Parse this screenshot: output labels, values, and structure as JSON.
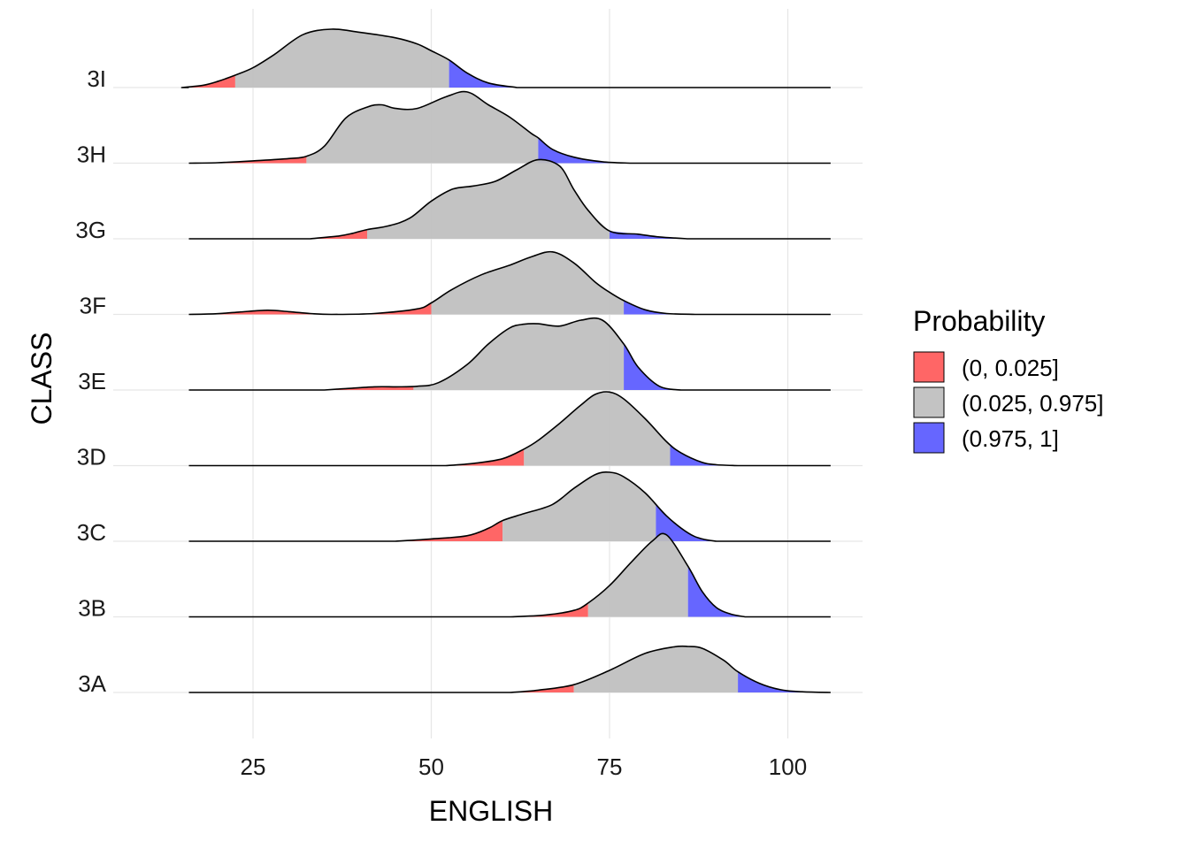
{
  "chart_data": {
    "type": "area",
    "xlabel": "ENGLISH",
    "ylabel": "CLASS",
    "xlim": [
      10,
      108
    ],
    "x_ticks": [
      25,
      50,
      75,
      100
    ],
    "x_tick_labels": [
      "25",
      "50",
      "75",
      "100"
    ],
    "grid": true,
    "legend_placement": "right",
    "legend": {
      "title": "Probability",
      "entries": [
        {
          "label": "(0, 0.025]",
          "color": "#FF5A5A"
        },
        {
          "label": "(0.025, 0.975]",
          "color": "#BEBEBE"
        },
        {
          "label": "(0.975, 1]",
          "color": "#5A5AFF"
        }
      ]
    },
    "line_range": [
      16,
      106
    ],
    "categories": [
      "3A",
      "3B",
      "3C",
      "3D",
      "3E",
      "3F",
      "3G",
      "3H",
      "3I"
    ],
    "series": [
      {
        "name": "3A",
        "q025": 70,
        "q975": 93,
        "x": [
          61,
          65,
          70,
          75,
          80,
          84,
          86,
          88,
          91,
          93,
          96,
          99,
          102,
          106
        ],
        "y": [
          0,
          0.05,
          0.17,
          0.48,
          0.85,
          0.99,
          1.0,
          0.96,
          0.7,
          0.45,
          0.2,
          0.06,
          0.015,
          0
        ]
      },
      {
        "name": "3B",
        "q025": 72,
        "q975": 86,
        "x": [
          61,
          66,
          70,
          72,
          75,
          78,
          81,
          83,
          86,
          88,
          90,
          92,
          94
        ],
        "y": [
          0,
          0.04,
          0.14,
          0.3,
          0.68,
          1.18,
          1.65,
          1.78,
          1.1,
          0.55,
          0.2,
          0.06,
          0
        ]
      },
      {
        "name": "3C",
        "q025": 60,
        "q975": 81.5,
        "x": [
          45,
          50,
          55,
          58,
          60,
          63,
          67,
          70,
          73,
          75,
          77,
          80,
          83,
          86,
          88,
          90
        ],
        "y": [
          0,
          0.05,
          0.12,
          0.28,
          0.45,
          0.6,
          0.8,
          1.15,
          1.45,
          1.5,
          1.4,
          1.05,
          0.55,
          0.18,
          0.05,
          0
        ]
      },
      {
        "name": "3D",
        "q025": 63,
        "q975": 83.5,
        "x": [
          52,
          56,
          60,
          63,
          65,
          68,
          71,
          73,
          75,
          77,
          80,
          83,
          85,
          88,
          90,
          93
        ],
        "y": [
          0,
          0.05,
          0.15,
          0.36,
          0.55,
          0.92,
          1.32,
          1.55,
          1.6,
          1.45,
          1.02,
          0.52,
          0.28,
          0.07,
          0.02,
          0
        ]
      },
      {
        "name": "3E",
        "q025": 47.5,
        "q975": 77,
        "x": [
          35,
          38,
          42,
          45,
          48,
          51,
          55,
          58,
          61,
          63,
          65,
          68,
          71,
          74,
          77,
          79,
          82,
          85
        ],
        "y": [
          0,
          0.03,
          0.07,
          0.07,
          0.08,
          0.16,
          0.55,
          1.0,
          1.35,
          1.43,
          1.44,
          1.39,
          1.52,
          1.52,
          1.0,
          0.5,
          0.08,
          0
        ]
      },
      {
        "name": "3F",
        "q025": 50,
        "q975": 77,
        "x": [
          16,
          20,
          23,
          27,
          30,
          33,
          36,
          42,
          48,
          50,
          53,
          57,
          61,
          64,
          67,
          70,
          73,
          75,
          77,
          80,
          83,
          87
        ],
        "y": [
          0,
          0.015,
          0.05,
          0.09,
          0.06,
          0.02,
          0,
          0.02,
          0.12,
          0.25,
          0.55,
          0.86,
          1.07,
          1.25,
          1.36,
          1.12,
          0.7,
          0.48,
          0.3,
          0.1,
          0.02,
          0
        ]
      },
      {
        "name": "3G",
        "q025": 41,
        "q975": 75,
        "x": [
          33,
          37,
          39,
          41,
          44,
          47,
          50,
          53,
          56,
          59,
          62,
          65,
          68,
          70,
          72,
          75,
          79,
          82,
          86
        ],
        "y": [
          0,
          0.06,
          0.12,
          0.2,
          0.28,
          0.45,
          0.82,
          1.08,
          1.15,
          1.25,
          1.5,
          1.72,
          1.58,
          1.07,
          0.62,
          0.17,
          0.1,
          0.04,
          0
        ]
      },
      {
        "name": "3H",
        "q025": 32.5,
        "q975": 65,
        "x": [
          16,
          20,
          25,
          30,
          32.5,
          35,
          38,
          41,
          43,
          45,
          48,
          52,
          55,
          58,
          61,
          64,
          65,
          67,
          70,
          74,
          78
        ],
        "y": [
          0,
          0.01,
          0.05,
          0.1,
          0.15,
          0.37,
          0.98,
          1.22,
          1.27,
          1.19,
          1.19,
          1.44,
          1.55,
          1.27,
          1.0,
          0.65,
          0.55,
          0.3,
          0.13,
          0.03,
          0
        ]
      },
      {
        "name": "3I",
        "q025": 22.5,
        "q975": 52.5,
        "x": [
          15,
          18,
          20,
          22.5,
          25,
          28,
          32,
          36,
          40,
          45,
          48,
          50,
          52.5,
          55,
          58,
          62
        ],
        "y": [
          0,
          0.05,
          0.13,
          0.27,
          0.43,
          0.72,
          1.15,
          1.27,
          1.2,
          1.08,
          0.95,
          0.8,
          0.6,
          0.32,
          0.1,
          0
        ]
      }
    ]
  }
}
